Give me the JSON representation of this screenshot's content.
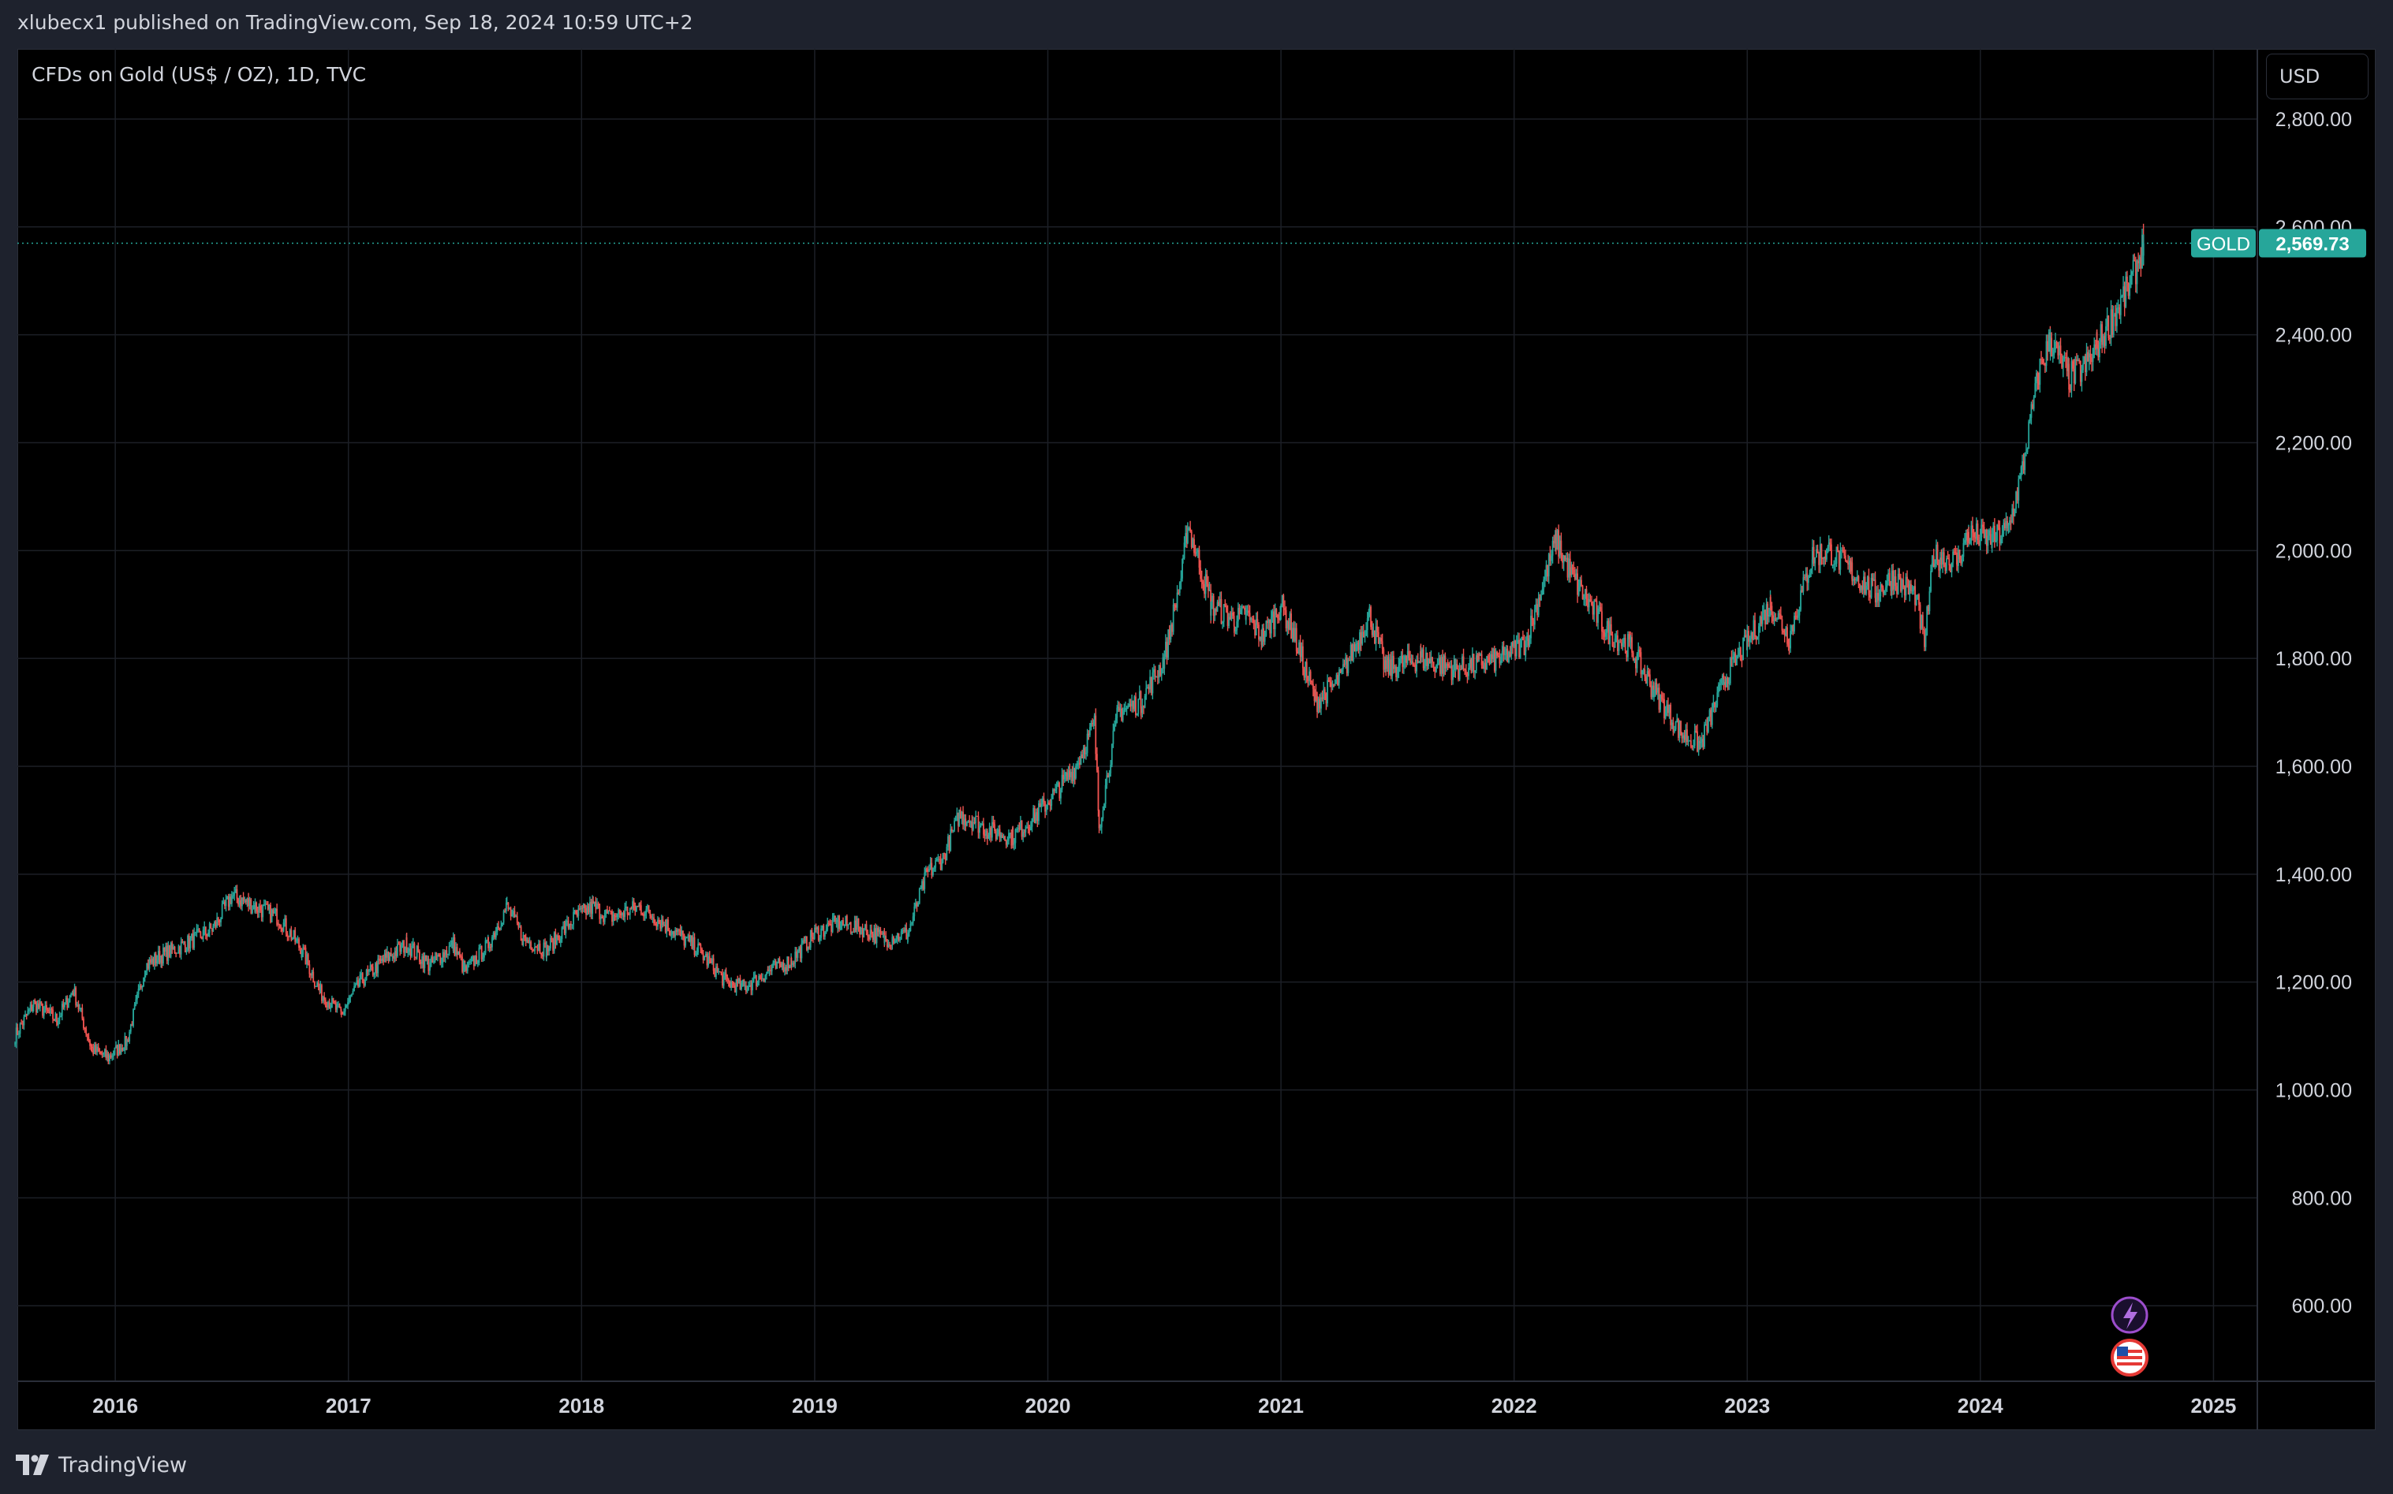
{
  "header": {
    "published_text": "xlubecx1 published on TradingView.com, Sep 18, 2024 10:59 UTC+2"
  },
  "chart": {
    "symbol_text": "CFDs on Gold (US$ / OZ), 1D, TVC",
    "currency_button": "USD",
    "price_tag_symbol": "GOLD",
    "price_tag_value": "2,569.73",
    "colors": {
      "up": "#26a69a",
      "down": "#ef5350",
      "grid": "#1c1f26",
      "price_line": "#26a69a",
      "axis_text": "#d1d4dc"
    }
  },
  "footer": {
    "brand": "TradingView"
  },
  "chart_data": {
    "type": "candlestick",
    "title": "CFDs on Gold (US$ / OZ), 1D, TVC",
    "y_ticks": [
      "2,800.00",
      "2,600.00",
      "2,400.00",
      "2,200.00",
      "2,000.00",
      "1,800.00",
      "1,600.00",
      "1,400.00",
      "1,200.00",
      "1,000.00",
      "800.00",
      "600.00"
    ],
    "x_ticks": [
      "2016",
      "2017",
      "2018",
      "2019",
      "2020",
      "2021",
      "2022",
      "2023",
      "2024",
      "2025"
    ],
    "ylim": [
      460,
      2930
    ],
    "last_price": 2569.73,
    "series": [
      {
        "name": "GOLD",
        "x": [
          2015.57,
          2015.65,
          2015.75,
          2015.82,
          2015.9,
          2015.97,
          2016.05,
          2016.13,
          2016.2,
          2016.3,
          2016.42,
          2016.5,
          2016.6,
          2016.7,
          2016.8,
          2016.88,
          2016.97,
          2017.05,
          2017.15,
          2017.25,
          2017.35,
          2017.45,
          2017.5,
          2017.6,
          2017.68,
          2017.75,
          2017.85,
          2017.97,
          2018.05,
          2018.12,
          2018.25,
          2018.38,
          2018.5,
          2018.62,
          2018.7,
          2018.8,
          2018.9,
          2019.0,
          2019.1,
          2019.2,
          2019.3,
          2019.4,
          2019.48,
          2019.55,
          2019.62,
          2019.68,
          2019.75,
          2019.85,
          2019.95,
          2020.05,
          2020.12,
          2020.2,
          2020.22,
          2020.3,
          2020.4,
          2020.5,
          2020.58,
          2020.6,
          2020.7,
          2020.8,
          2020.85,
          2020.92,
          2021.0,
          2021.05,
          2021.15,
          2021.25,
          2021.38,
          2021.45,
          2021.6,
          2021.75,
          2021.85,
          2021.95,
          2022.05,
          2022.18,
          2022.25,
          2022.4,
          2022.5,
          2022.6,
          2022.72,
          2022.8,
          2022.9,
          2023.0,
          2023.1,
          2023.18,
          2023.28,
          2023.35,
          2023.45,
          2023.55,
          2023.62,
          2023.72,
          2023.76,
          2023.8,
          2023.9,
          2023.95,
          2024.05,
          2024.12,
          2024.18,
          2024.25,
          2024.3,
          2024.38,
          2024.45,
          2024.5,
          2024.58,
          2024.65,
          2024.7
        ],
        "values": [
          1100,
          1160,
          1130,
          1185,
          1075,
          1060,
          1090,
          1230,
          1250,
          1270,
          1300,
          1360,
          1340,
          1320,
          1260,
          1180,
          1140,
          1200,
          1240,
          1270,
          1230,
          1270,
          1220,
          1270,
          1340,
          1280,
          1260,
          1320,
          1340,
          1320,
          1340,
          1300,
          1260,
          1200,
          1190,
          1220,
          1240,
          1290,
          1310,
          1300,
          1280,
          1290,
          1400,
          1430,
          1510,
          1500,
          1480,
          1470,
          1510,
          1560,
          1600,
          1680,
          1490,
          1700,
          1720,
          1800,
          1970,
          2050,
          1900,
          1870,
          1880,
          1840,
          1900,
          1850,
          1720,
          1760,
          1880,
          1780,
          1800,
          1780,
          1790,
          1800,
          1830,
          2020,
          1950,
          1850,
          1820,
          1740,
          1660,
          1640,
          1760,
          1830,
          1900,
          1840,
          1990,
          2000,
          1960,
          1920,
          1950,
          1920,
          1830,
          1990,
          1980,
          2030,
          2020,
          2040,
          2150,
          2330,
          2390,
          2320,
          2340,
          2380,
          2440,
          2500,
          2569.73
        ]
      }
    ]
  }
}
